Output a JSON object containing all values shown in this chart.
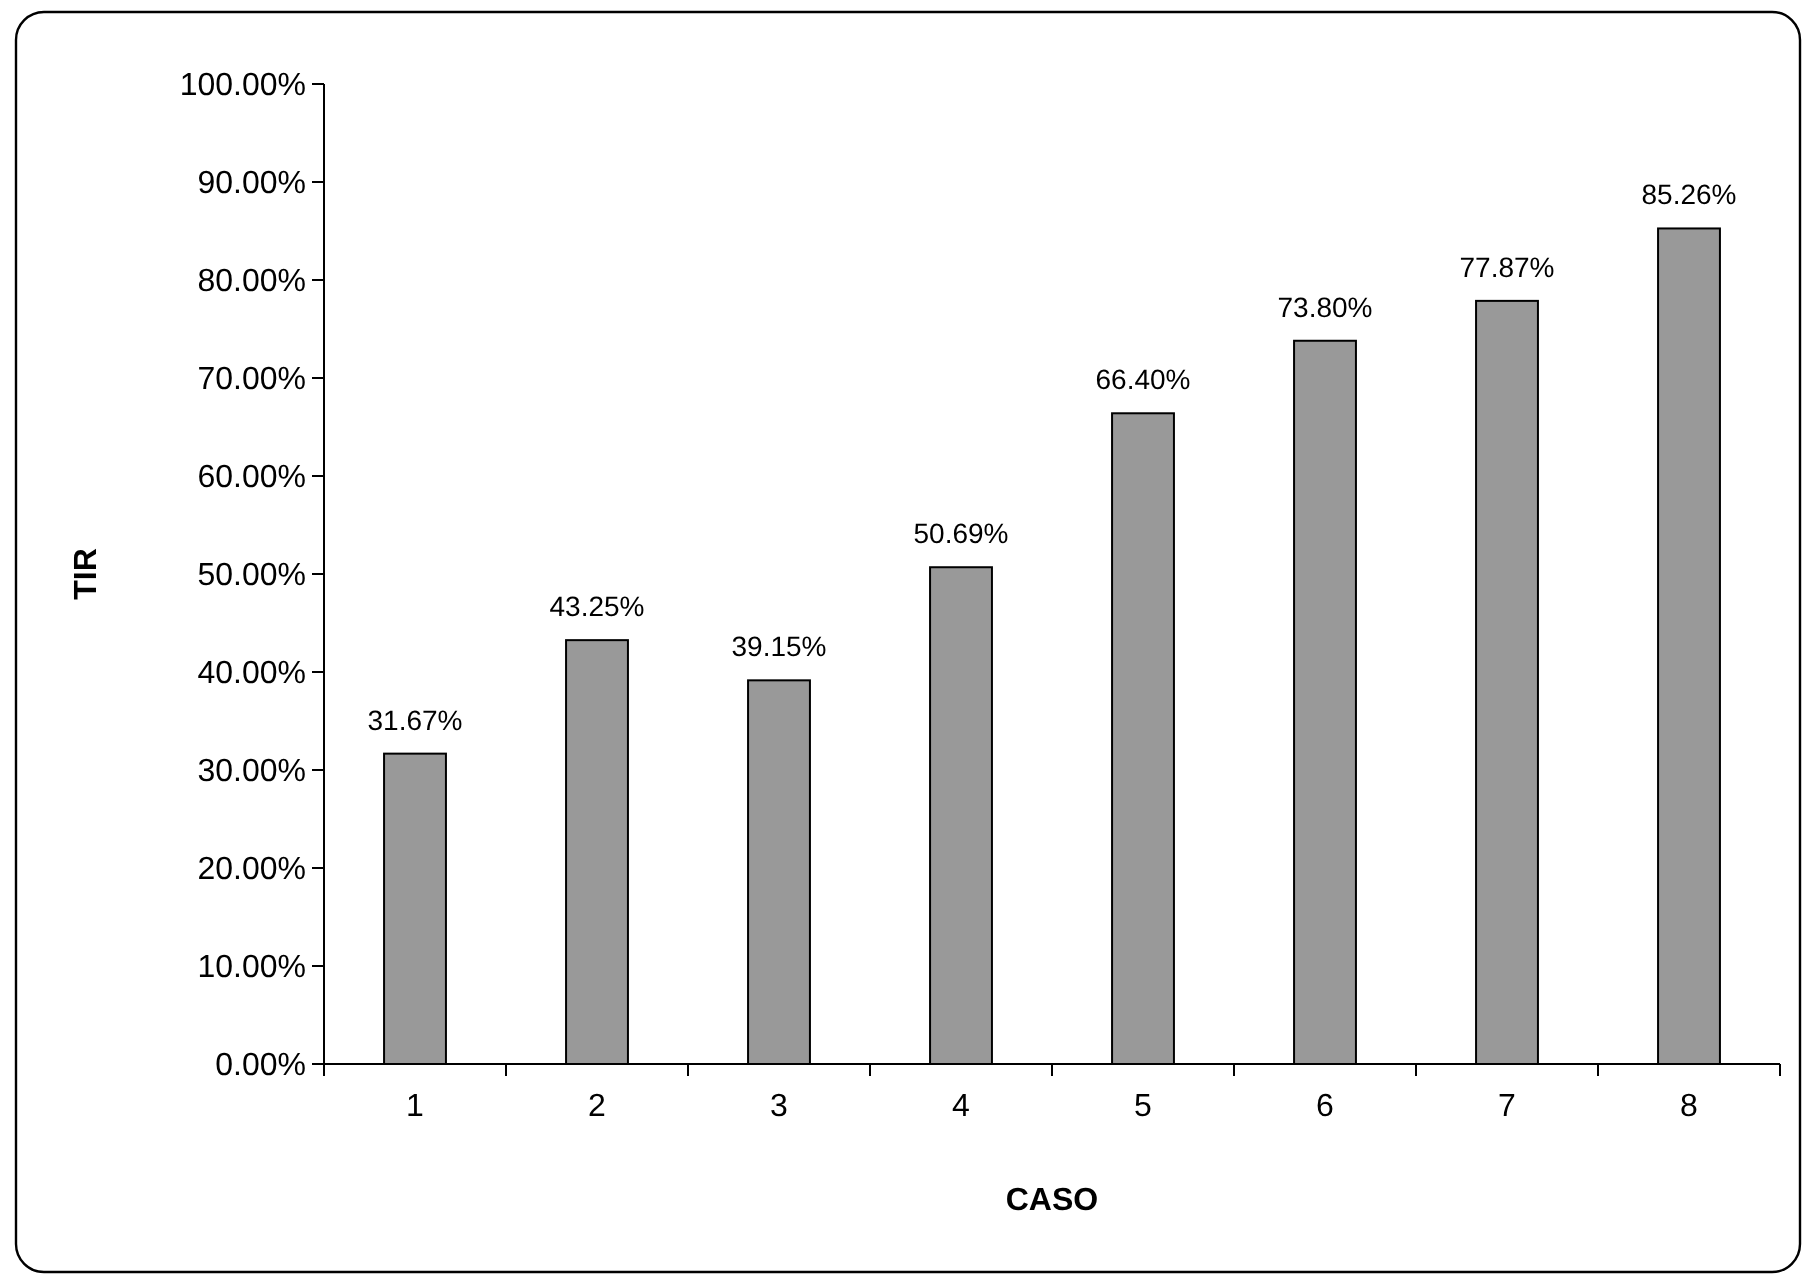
{
  "chart_data": {
    "type": "bar",
    "xlabel": "CASO",
    "ylabel": "TIR",
    "categories": [
      "1",
      "2",
      "3",
      "4",
      "5",
      "6",
      "7",
      "8"
    ],
    "values": [
      31.67,
      43.25,
      39.15,
      50.69,
      66.4,
      73.8,
      77.87,
      85.26
    ],
    "value_labels": [
      "31.67%",
      "43.25%",
      "39.15%",
      "50.69%",
      "66.40%",
      "73.80%",
      "77.87%",
      "85.26%"
    ],
    "color": "#999999",
    "ylim": [
      0,
      100
    ],
    "yticks": [
      {
        "value": 0,
        "label": "0.00%"
      },
      {
        "value": 10,
        "label": "10.00%"
      },
      {
        "value": 20,
        "label": "20.00%"
      },
      {
        "value": 30,
        "label": "30.00%"
      },
      {
        "value": 40,
        "label": "40.00%"
      },
      {
        "value": 50,
        "label": "50.00%"
      },
      {
        "value": 60,
        "label": "60.00%"
      },
      {
        "value": 70,
        "label": "70.00%"
      },
      {
        "value": 80,
        "label": "80.00%"
      },
      {
        "value": 90,
        "label": "90.00%"
      },
      {
        "value": 100,
        "label": "100.00%"
      }
    ],
    "grid": false
  }
}
